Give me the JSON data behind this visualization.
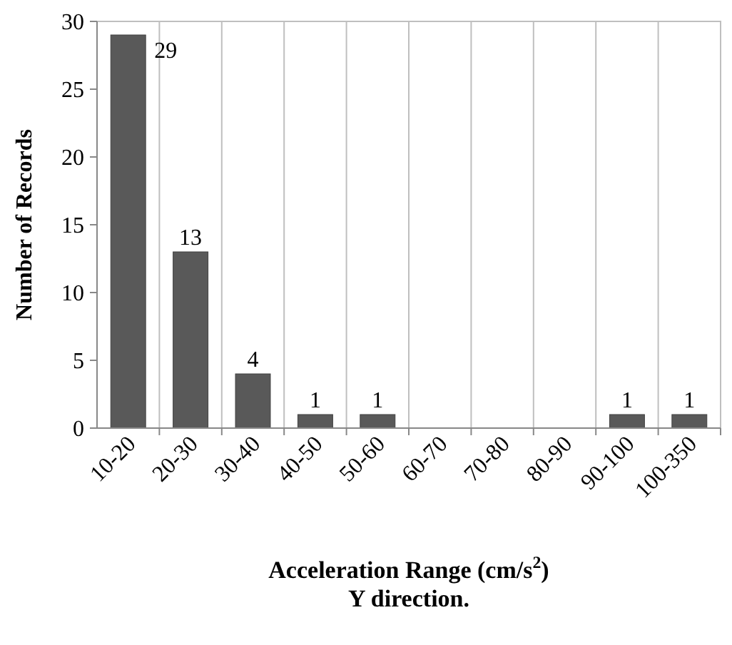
{
  "chart_data": {
    "type": "bar",
    "xlabel": "Acceleration Range (cm/s$^{2}$)\nY direction.",
    "ylabel": "Number of Records",
    "categories": [
      "10-20",
      "20-30",
      "30-40",
      "40-50",
      "50-60",
      "60-70",
      "70-80",
      "80-90",
      "90-100",
      "100-350"
    ],
    "values": [
      29,
      13,
      4,
      1,
      1,
      0,
      0,
      0,
      1,
      1
    ],
    "value_labels": [
      "29",
      "13",
      "4",
      "1",
      "1",
      null,
      null,
      null,
      "1",
      "1"
    ],
    "color": "#595959",
    "ylim": [
      0,
      30
    ],
    "yticks": [
      0,
      5,
      10,
      15,
      20,
      25,
      30
    ],
    "grid": "x"
  }
}
